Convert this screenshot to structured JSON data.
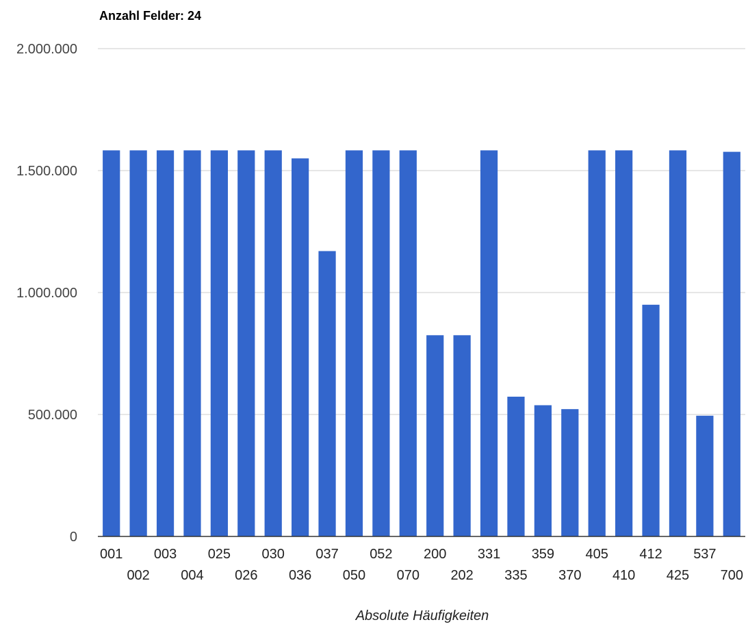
{
  "chart_data": {
    "type": "bar",
    "title": "Anzahl Felder: 24",
    "xlabel": "Absolute Häufigkeiten",
    "ylabel": "",
    "ylim": [
      0,
      2000000
    ],
    "yticks": [
      0,
      500000,
      1000000,
      1500000,
      2000000
    ],
    "ytick_labels": [
      "0",
      "500.000",
      "1.000.000",
      "1.500.000",
      "2.000.000"
    ],
    "grid": true,
    "legend": "none",
    "bar_color": "#3366cc",
    "categories": [
      "001",
      "002",
      "003",
      "004",
      "025",
      "026",
      "030",
      "036",
      "037",
      "050",
      "052",
      "070",
      "200",
      "202",
      "331",
      "335",
      "359",
      "370",
      "405",
      "410",
      "412",
      "425",
      "537",
      "700"
    ],
    "values": [
      1583000,
      1583000,
      1583000,
      1583000,
      1583000,
      1583000,
      1583000,
      1550000,
      1170000,
      1583000,
      1583000,
      1583000,
      825000,
      825000,
      1583000,
      573000,
      538000,
      522000,
      1583000,
      1583000,
      950000,
      1583000,
      495000,
      1577000
    ]
  }
}
